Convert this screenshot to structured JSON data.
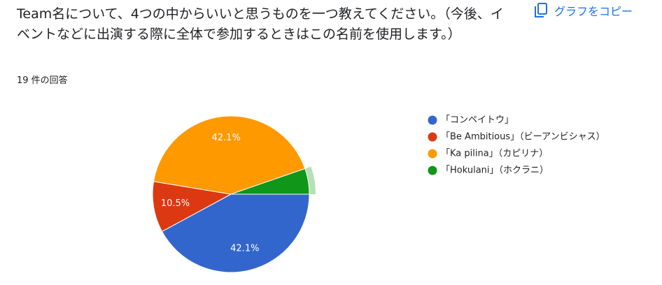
{
  "title": "Team名について、4つの中からいいと思うものを一つ教えてください。（今後、イベントなどに出演する際に全体で参加するときはこの名前を使用します。）",
  "subtitle": "19 件の回答",
  "copy_button": "グラフをコピー",
  "chart_data": {
    "type": "pie",
    "categories": [
      "「コンペイトウ」",
      "「Be Ambitious」（ビーアンビシャス）",
      "「Ka pilina」（カピリナ）",
      "「Hokulani」（ホクラニ）"
    ],
    "values": [
      42.1,
      10.5,
      42.1,
      5.3
    ],
    "value_labels": [
      "42.1%",
      "10.5%",
      "42.1%",
      null
    ],
    "colors": [
      "#3366cc",
      "#dc3912",
      "#ff9900",
      "#109618"
    ],
    "legend": "right"
  }
}
